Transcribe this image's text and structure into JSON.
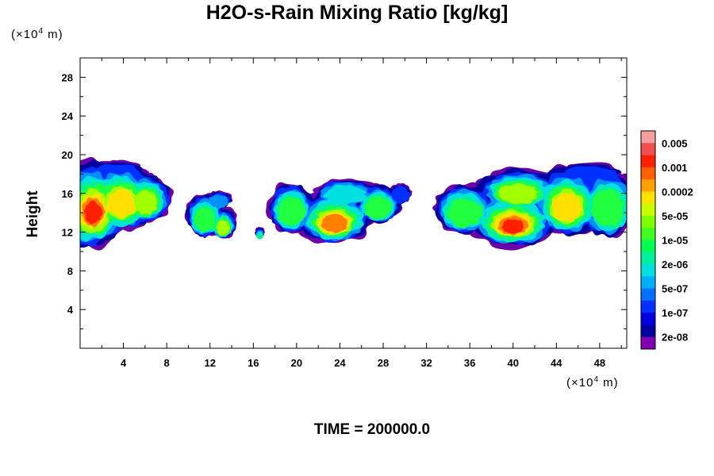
{
  "chart_data": {
    "type": "heatmap",
    "title": "H2O-s-Rain Mixing Ratio [kg/kg]",
    "ylabel": "Height",
    "xlabel": "",
    "x_unit_base": "(×10",
    "x_unit_exp": "4",
    "x_unit_tail": " m)",
    "y_unit_base": "(×10",
    "y_unit_exp": "4",
    "y_unit_tail": " m)",
    "xlim": [
      0,
      50.5
    ],
    "ylim": [
      0,
      30
    ],
    "x_ticks": [
      "4",
      "8",
      "12",
      "16",
      "20",
      "24",
      "28",
      "32",
      "36",
      "40",
      "44",
      "48"
    ],
    "y_ticks": [
      "4",
      "8",
      "12",
      "16",
      "20",
      "24",
      "28"
    ],
    "colorbar_labels": [
      "0.005",
      "0.001",
      "0.0002",
      "5e-05",
      "1e-05",
      "2e-06",
      "5e-07",
      "1e-07",
      "2e-08"
    ],
    "colorbar_colors": [
      "#f4a0a0",
      "#f05050",
      "#ff2000",
      "#ff6000",
      "#ffa000",
      "#ffe000",
      "#c8ff00",
      "#80ff00",
      "#40ff20",
      "#00ff50",
      "#00f0a0",
      "#00e0e0",
      "#00b0ff",
      "#0070ff",
      "#0030ff",
      "#0000e0",
      "#0000a0",
      "#8000b0"
    ],
    "level_colors": {
      "outer": "#6a00a8",
      "dark_blue": "#0000a0",
      "blue": "#0030ff",
      "light_blue": "#0090ff",
      "cyan": "#00e0e0",
      "teal": "#00f0a0",
      "green": "#20ff40",
      "yellow_green": "#a0ff00",
      "yellow": "#ffe000",
      "orange": "#ff8000",
      "red": "#ff2000"
    },
    "clouds": [
      {
        "name": "cloud-left",
        "x_range": [
          0,
          8.6
        ],
        "y_range": [
          10.2,
          19.6
        ]
      },
      {
        "name": "cloud-small-1",
        "x_range": [
          9.6,
          14.5
        ],
        "y_range": [
          11.3,
          16.5
        ]
      },
      {
        "name": "cloud-small-2",
        "x_range": [
          16.2,
          17.2
        ],
        "y_range": [
          11.2,
          12.5
        ]
      },
      {
        "name": "cloud-middle",
        "x_range": [
          17.3,
          30.8
        ],
        "y_range": [
          11.0,
          17.8
        ]
      },
      {
        "name": "cloud-right",
        "x_range": [
          32.8,
          50.5
        ],
        "y_range": [
          10.4,
          19.2
        ]
      }
    ],
    "time_label": "TIME = 200000.0"
  }
}
